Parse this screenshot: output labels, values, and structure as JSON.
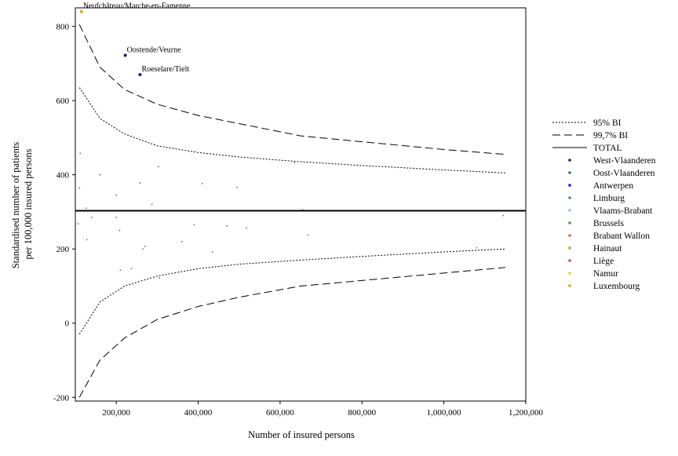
{
  "chart_data": {
    "type": "scatter",
    "title": "",
    "xlabel": "Number of insured persons",
    "ylabel_lines": [
      "Standardised number of patients",
      "per 100,000 insured persons"
    ],
    "xlim": [
      100000,
      1200000
    ],
    "ylim": [
      -210,
      850
    ],
    "x_ticks": [
      200000,
      400000,
      600000,
      800000,
      1000000,
      1200000
    ],
    "x_tick_labels": [
      "200,000",
      "400,000",
      "600,000",
      "800,000",
      "1,000,000",
      "1,200,000"
    ],
    "y_ticks": [
      -200,
      0,
      200,
      400,
      600,
      800
    ],
    "y_tick_labels": [
      "-200",
      "0",
      "200",
      "400",
      "600",
      "800"
    ],
    "grid": false,
    "legend_position": "right",
    "total": {
      "name": "TOTAL",
      "value": 303
    },
    "limit_lines": [
      {
        "name": "95% BI",
        "style": "dotted",
        "x": [
          110000,
          160000,
          220000,
          300000,
          400000,
          500000,
          650000,
          800000,
          1000000,
          1150000
        ],
        "upper": [
          635,
          552,
          510,
          478,
          460,
          448,
          435,
          425,
          413,
          405
        ],
        "lower": [
          -30,
          57,
          100,
          127,
          147,
          159,
          170,
          180,
          192,
          200
        ]
      },
      {
        "name": "99,7% BI",
        "style": "dashed",
        "x": [
          110000,
          160000,
          220000,
          300000,
          400000,
          500000,
          650000,
          800000,
          1000000,
          1150000
        ],
        "upper": [
          805,
          690,
          630,
          590,
          560,
          538,
          505,
          489,
          468,
          455
        ],
        "lower": [
          -200,
          -100,
          -40,
          10,
          45,
          70,
          100,
          115,
          135,
          150
        ]
      }
    ],
    "provinces": [
      {
        "name": "West-Vlaanderen",
        "color": "#1a1a80"
      },
      {
        "name": "Oost-Vlaanderen",
        "color": "#3a64c8"
      },
      {
        "name": "Antwerpen",
        "color": "#1515d6"
      },
      {
        "name": "Limburg",
        "color": "#2a8fd4"
      },
      {
        "name": "Vlaams-Brabant",
        "color": "#82c8e8"
      },
      {
        "name": "Brussels",
        "color": "#3aa84a"
      },
      {
        "name": "Brabant Wallon",
        "color": "#d8703a"
      },
      {
        "name": "Hainaut",
        "color": "#e88a2a"
      },
      {
        "name": "Liège",
        "color": "#b85a4a"
      },
      {
        "name": "Namur",
        "color": "#e8d020"
      },
      {
        "name": "Luxembourg",
        "color": "#e8a020"
      }
    ],
    "labeled_points": [
      {
        "label": "Neufchâteau/Marche-en-Famenne",
        "x": 115000,
        "y": 840,
        "color": "#e8a020"
      },
      {
        "label": "Oostende/Veurne",
        "x": 222000,
        "y": 722,
        "color": "#1a1a80"
      },
      {
        "label": "Roeselare/Tielt",
        "x": 258000,
        "y": 670,
        "color": "#1a1a80"
      }
    ],
    "points": [
      {
        "x": 107000,
        "y": 268
      },
      {
        "x": 112000,
        "y": 458
      },
      {
        "x": 110000,
        "y": 365
      },
      {
        "x": 127000,
        "y": 310
      },
      {
        "x": 128000,
        "y": 225
      },
      {
        "x": 140000,
        "y": 285
      },
      {
        "x": 160000,
        "y": 400
      },
      {
        "x": 200000,
        "y": 345
      },
      {
        "x": 200000,
        "y": 285
      },
      {
        "x": 208000,
        "y": 250
      },
      {
        "x": 210000,
        "y": 143
      },
      {
        "x": 237000,
        "y": 147
      },
      {
        "x": 258000,
        "y": 378
      },
      {
        "x": 265000,
        "y": 200
      },
      {
        "x": 270000,
        "y": 207
      },
      {
        "x": 287000,
        "y": 320
      },
      {
        "x": 305000,
        "y": 122
      },
      {
        "x": 303000,
        "y": 422
      },
      {
        "x": 360000,
        "y": 220
      },
      {
        "x": 390000,
        "y": 265
      },
      {
        "x": 410000,
        "y": 376
      },
      {
        "x": 435000,
        "y": 192
      },
      {
        "x": 470000,
        "y": 262
      },
      {
        "x": 495000,
        "y": 366
      },
      {
        "x": 518000,
        "y": 256
      },
      {
        "x": 635000,
        "y": 432
      },
      {
        "x": 655000,
        "y": 306
      },
      {
        "x": 668000,
        "y": 238
      },
      {
        "x": 1080000,
        "y": 203
      },
      {
        "x": 1145000,
        "y": 290
      }
    ]
  },
  "legend": {
    "line_items": [
      {
        "label": "95% BI",
        "style": "dotted"
      },
      {
        "label": "99,7% BI",
        "style": "dashed"
      },
      {
        "label": "TOTAL",
        "style": "solid"
      }
    ]
  }
}
